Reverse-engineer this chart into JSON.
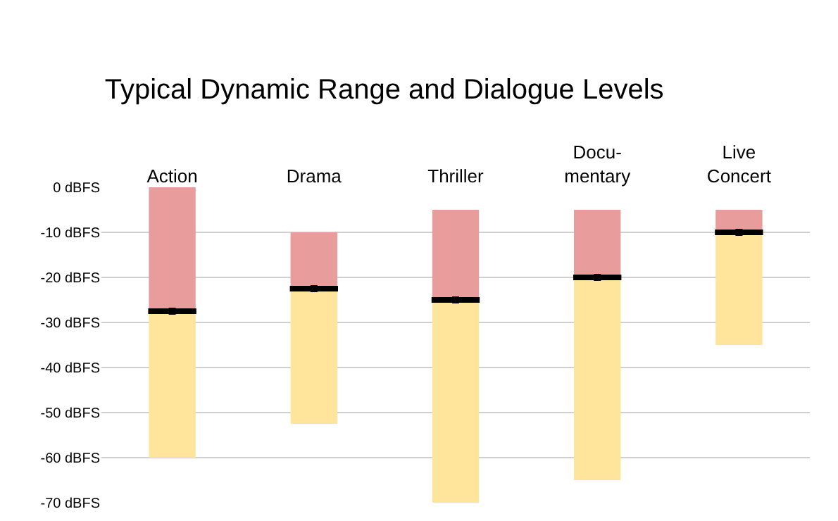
{
  "chart_data": {
    "type": "bar",
    "title": "Typical Dynamic Range and Dialogue Levels",
    "categories": [
      "Action",
      "Drama",
      "Thriller",
      "Docu-\nmentary",
      "Live\nConcert"
    ],
    "series": [
      {
        "color": "#e99c9c",
        "base": [
          -27.5,
          -22.5,
          -25,
          -20,
          -10
        ],
        "values": [
          27.5,
          12.5,
          20,
          15,
          5
        ]
      },
      {
        "color": "#fee59b",
        "base": [
          -60,
          -52.5,
          -70,
          -65,
          -35
        ],
        "values": [
          32.5,
          30,
          45,
          45,
          25
        ]
      },
      {
        "type": "scatter",
        "color": "#000000",
        "values": [
          -27.5,
          -22.5,
          -25,
          -20,
          -10
        ]
      }
    ],
    "ylim": [
      -70,
      0
    ],
    "yticks": [
      {
        "value": 0,
        "label": "0 dBFS"
      },
      {
        "value": -10,
        "label": "-10 dBFS"
      },
      {
        "value": -20,
        "label": "-20 dBFS"
      },
      {
        "value": -30,
        "label": "-30 dBFS"
      },
      {
        "value": -40,
        "label": "-40 dBFS"
      },
      {
        "value": -50,
        "label": "-50 dBFS"
      },
      {
        "value": -60,
        "label": "-60 dBFS"
      },
      {
        "value": -70,
        "label": "-70 dBFS"
      }
    ],
    "grid": "y"
  }
}
